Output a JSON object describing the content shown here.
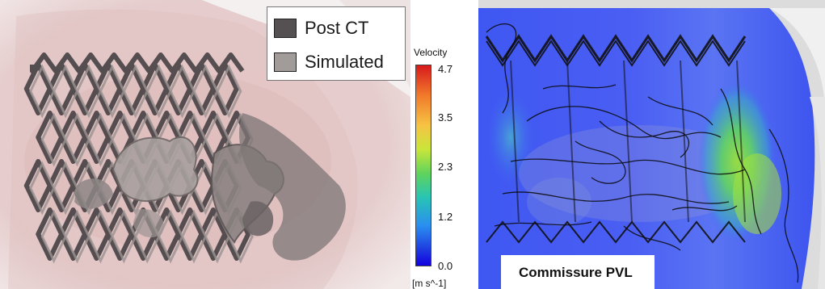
{
  "legend": {
    "items": [
      {
        "label": "Post CT",
        "color": "#555052"
      },
      {
        "label": "Simulated",
        "color": "#a19b99"
      }
    ]
  },
  "colorbar": {
    "title": "Velocity",
    "unit": "[m s^-1]",
    "ticks": [
      "4.7",
      "3.5",
      "2.3",
      "1.2",
      "0.0"
    ]
  },
  "caption": {
    "text": "Commissure PVL"
  },
  "colors": {
    "tissue": "#e8c9c9",
    "stent_dark": "#4a4446",
    "stent_light": "#8e8786",
    "flow_blue": "#3a4ff0"
  }
}
